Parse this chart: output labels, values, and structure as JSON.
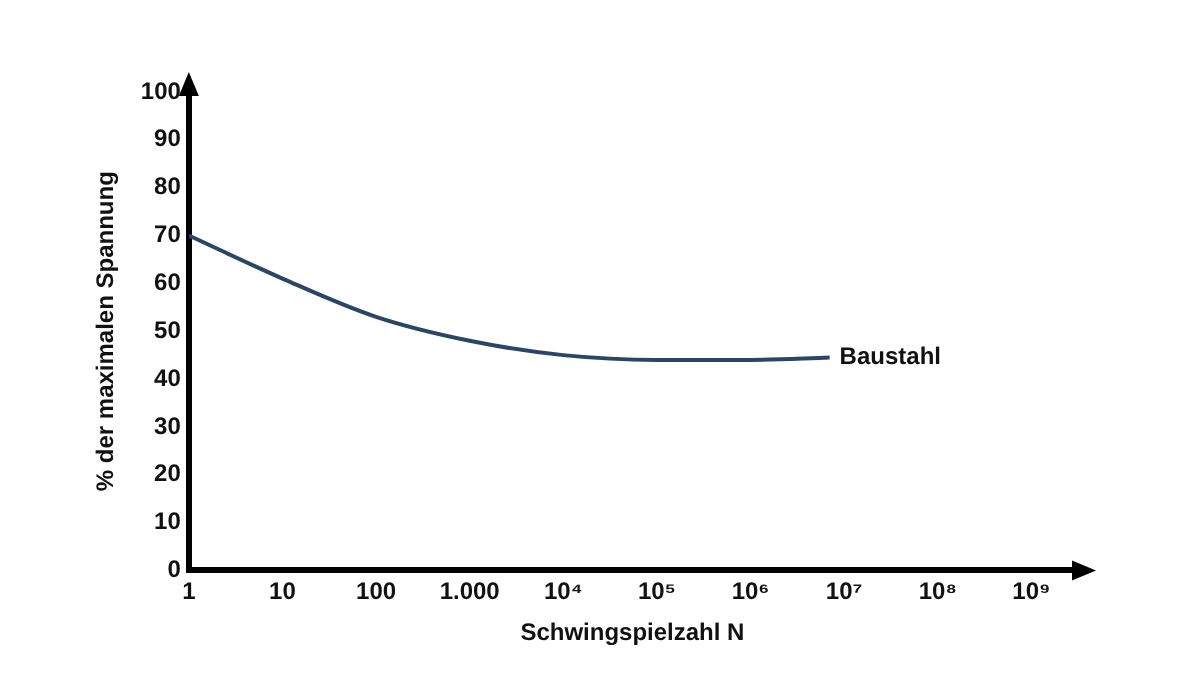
{
  "chart_data": {
    "type": "line",
    "xlabel": "Schwingspielzahl N",
    "ylabel": "% der maximalen Spannung",
    "log": "x",
    "marker": "none",
    "x": [
      1,
      10,
      100,
      1000,
      10000,
      100000,
      1000000,
      7000000
    ],
    "series": [
      {
        "name": "Baustahl",
        "color": "#2b4566",
        "values": [
          70,
          61,
          53,
          48,
          45,
          44,
          44,
          44.5
        ]
      }
    ],
    "xlim": [
      1,
      3000000000
    ],
    "xticks": [
      1,
      10,
      100,
      {
        "value": 1000,
        "label": "1.000"
      },
      {
        "value": 10000,
        "label": "10⁴"
      },
      {
        "value": 100000,
        "label": "10⁵"
      },
      {
        "value": 1000000,
        "label": "10⁶"
      },
      {
        "value": 10000000,
        "label": "10⁷"
      },
      {
        "value": 100000000,
        "label": "10⁸"
      },
      {
        "value": 1000000000,
        "label": "10⁹"
      }
    ],
    "ylim": [
      0,
      100
    ],
    "yticks": [
      0,
      10,
      20,
      30,
      40,
      50,
      60,
      70,
      80,
      90,
      100
    ]
  }
}
